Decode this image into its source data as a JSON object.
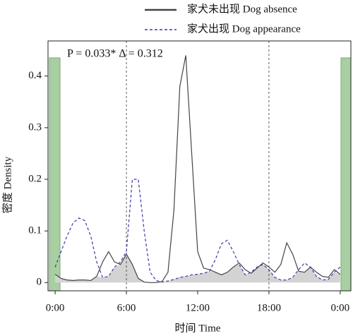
{
  "chart_data": {
    "type": "line",
    "title": null,
    "annotation": "P = 0.033* Δ = 0.312",
    "x_label": "时间 Time",
    "y_label": "密度 Density",
    "x": [
      0,
      0.5,
      1,
      1.5,
      2,
      2.5,
      3,
      3.5,
      4,
      4.5,
      5,
      5.5,
      6,
      6.5,
      7,
      7.5,
      8,
      8.5,
      9,
      9.5,
      10,
      10.5,
      11,
      11.5,
      12,
      12.5,
      13,
      13.5,
      14,
      14.5,
      15,
      15.5,
      16,
      16.5,
      17,
      17.5,
      18,
      18.5,
      19,
      19.5,
      20,
      20.5,
      21,
      21.5,
      22,
      22.5,
      23,
      23.5,
      24
    ],
    "series": [
      {
        "name": "家犬未出现 Dog absence",
        "color": "#444444",
        "dash": false,
        "values": [
          0.016,
          0.008,
          0.005,
          0.004,
          0.005,
          0.005,
          0.004,
          0.012,
          0.04,
          0.06,
          0.04,
          0.035,
          0.055,
          0.035,
          0.008,
          0.001,
          0,
          0,
          0.002,
          0.02,
          0.14,
          0.38,
          0.44,
          0.25,
          0.06,
          0.028,
          0.025,
          0.02,
          0.015,
          0.02,
          0.03,
          0.038,
          0.025,
          0.018,
          0.028,
          0.038,
          0.03,
          0.02,
          0.035,
          0.077,
          0.055,
          0.022,
          0.02,
          0.03,
          0.02,
          0.012,
          0.01,
          0.025,
          0.016
        ]
      },
      {
        "name": "家犬出现 Dog appearance",
        "color": "#3a3aa8",
        "dash": true,
        "values": [
          0.03,
          0.06,
          0.09,
          0.115,
          0.125,
          0.12,
          0.09,
          0.04,
          0.01,
          0.012,
          0.03,
          0.04,
          0.06,
          0.2,
          0.2,
          0.1,
          0.02,
          0.004,
          0.001,
          0.003,
          0.006,
          0.01,
          0.012,
          0.015,
          0.016,
          0.018,
          0.022,
          0.045,
          0.075,
          0.082,
          0.06,
          0.035,
          0.015,
          0.02,
          0.03,
          0.035,
          0.025,
          0.01,
          0.005,
          0.005,
          0.01,
          0.025,
          0.038,
          0.03,
          0.012,
          0.005,
          0.006,
          0.02,
          0.03
        ]
      }
    ],
    "reference_lines": [
      6,
      18
    ],
    "xlim": [
      -0.6,
      24.9
    ],
    "ylim": [
      -0.016,
      0.468
    ],
    "xticks": [
      {
        "value": 0,
        "label": "0:00"
      },
      {
        "value": 6,
        "label": "6:00"
      },
      {
        "value": 12,
        "label": "12:00"
      },
      {
        "value": 18,
        "label": "18:00"
      },
      {
        "value": 24,
        "label": "0:00"
      }
    ],
    "yticks": [
      0,
      0.1,
      0.2,
      0.3,
      0.4
    ],
    "overlap_color": "#d3d3d3"
  }
}
